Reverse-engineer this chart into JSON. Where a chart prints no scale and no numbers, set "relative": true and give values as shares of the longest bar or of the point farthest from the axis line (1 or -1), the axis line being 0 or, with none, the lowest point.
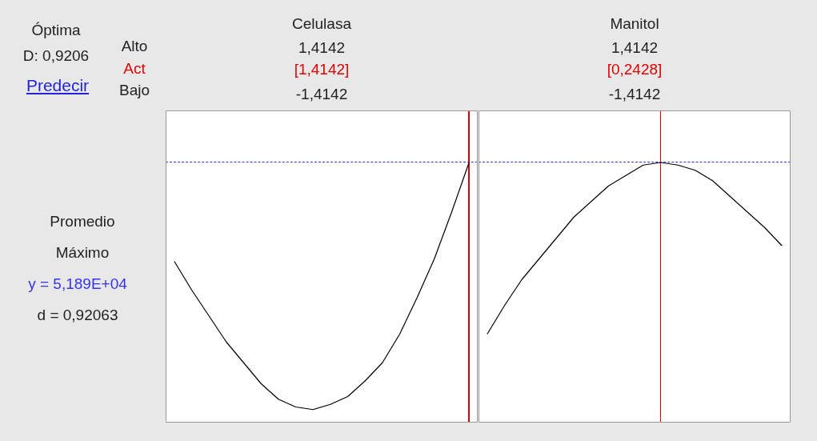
{
  "chart_data": [
    {
      "type": "other",
      "annotations": [
        "Óptima",
        "D: 0,9206",
        "Predecir",
        "Alto",
        "Act",
        "Bajo",
        "Promedio",
        "Máximo",
        "y = 5,189E+04",
        "d = 0,92063"
      ]
    },
    {
      "type": "line",
      "title": "Celulasa",
      "relative": true,
      "marker": "none",
      "annotations": [
        "1,4142",
        "[1,4142]",
        "-1,4142"
      ],
      "categories": [
        null,
        null,
        null,
        null,
        null,
        null,
        null,
        null,
        null,
        null,
        null,
        null,
        null,
        null,
        null,
        null,
        null,
        null
      ],
      "series": [
        {
          "color": "#000000",
          "values": [
            0.62,
            0.51,
            0.41,
            0.31,
            0.23,
            0.15,
            0.09,
            0.06,
            0.05,
            0.07,
            0.1,
            0.16,
            0.23,
            0.34,
            0.48,
            0.63,
            0.81,
            1.0
          ]
        }
      ]
    },
    {
      "type": "line",
      "title": "Manitol",
      "relative": true,
      "marker": "none",
      "annotations": [
        "1,4142",
        "[0,2428]",
        "-1,4142"
      ],
      "categories": [
        null,
        null,
        null,
        null,
        null,
        null,
        null,
        null,
        null,
        null,
        null,
        null,
        null,
        null,
        null,
        null,
        null,
        null
      ],
      "series": [
        {
          "color": "#000000",
          "values": [
            0.34,
            0.45,
            0.55,
            0.63,
            0.71,
            0.79,
            0.85,
            0.91,
            0.95,
            0.99,
            1.0,
            0.99,
            0.97,
            0.93,
            0.87,
            0.81,
            0.75,
            0.68
          ]
        }
      ]
    }
  ]
}
